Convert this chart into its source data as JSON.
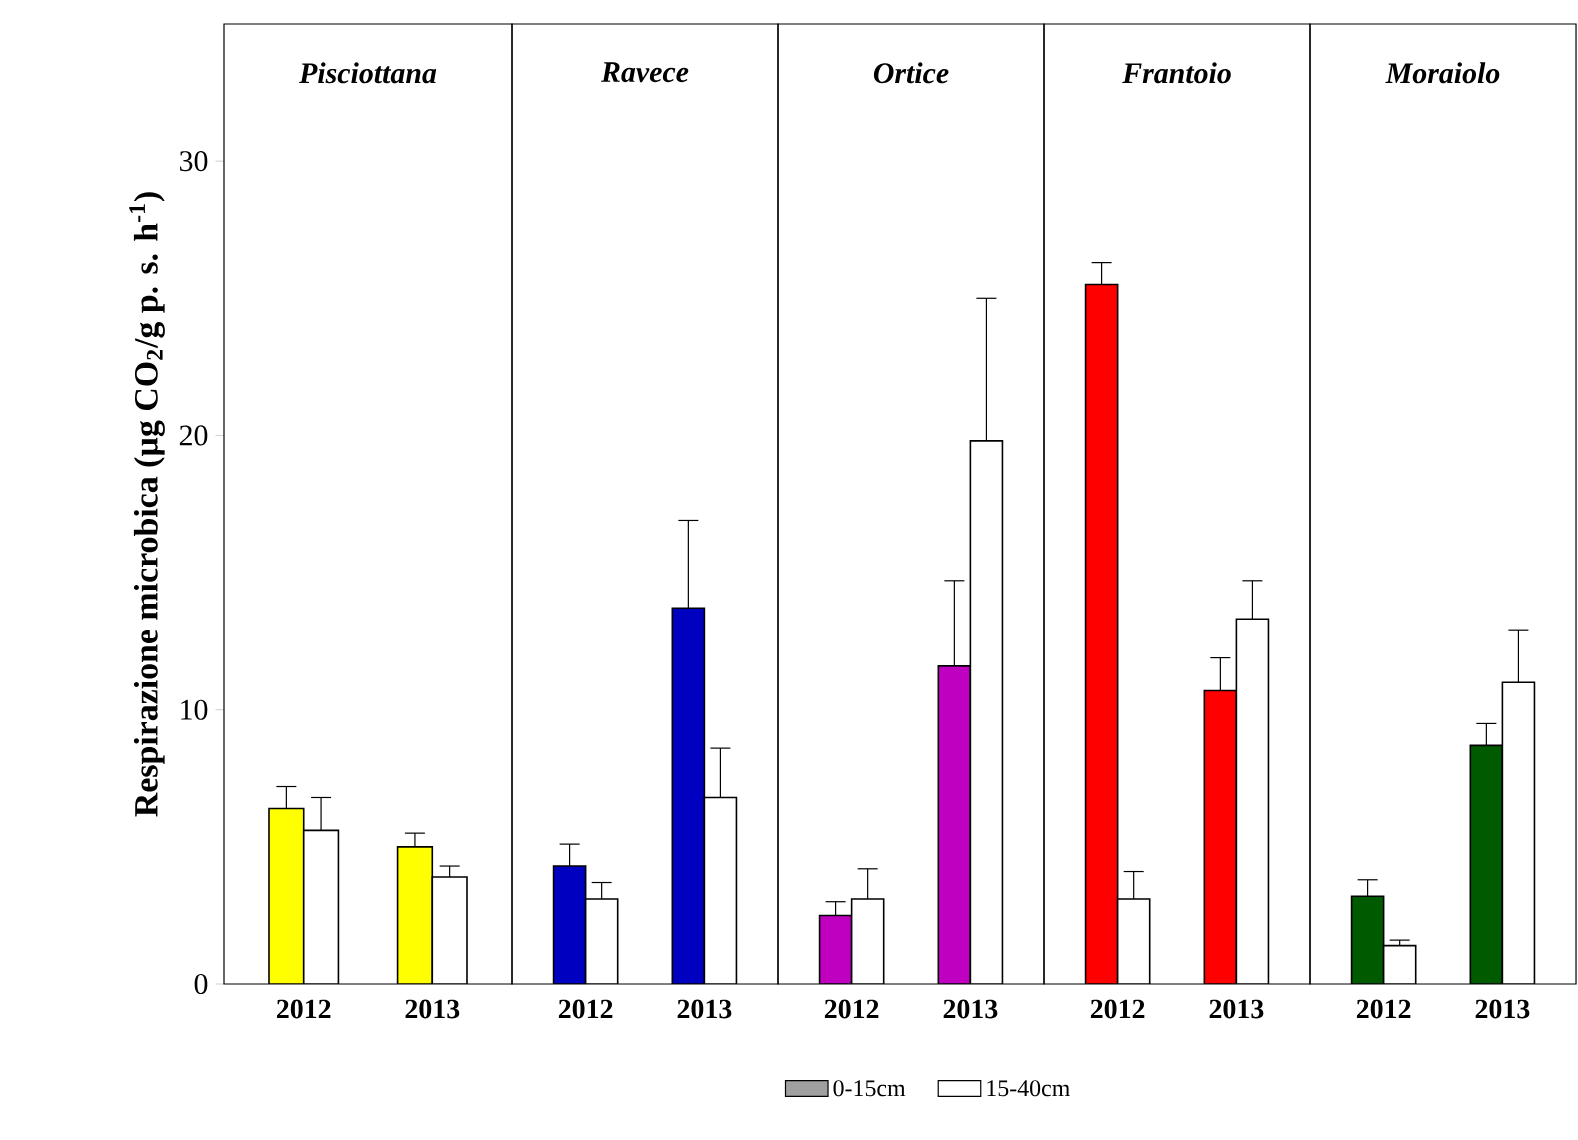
{
  "chart_data": [
    {
      "type": "bar",
      "title": "Pisciottana",
      "ylabel": "Respirazione microbica (µg CO$_{2}$/g p. s. h$^{-1}$)",
      "categories": [
        "2012",
        "2013"
      ],
      "ylim": [
        0,
        35
      ],
      "yticks": [
        0,
        10,
        20,
        30
      ],
      "legend": "bottom",
      "series": [
        {
          "name": "0-15cm",
          "color": "#a0a0a0",
          "colors": [
            "#ffff00",
            "#ffff00"
          ],
          "values": [
            6.4,
            5.0
          ],
          "errors": [
            [
              6.4,
              7.2
            ],
            [
              5.0,
              5.5
            ]
          ]
        },
        {
          "name": "15-40cm",
          "color": "#ffffff",
          "values": [
            5.6,
            3.9
          ],
          "errors": [
            [
              5.6,
              6.8
            ],
            [
              3.9,
              4.3
            ]
          ]
        }
      ]
    },
    {
      "type": "bar",
      "title": "Ravece",
      "categories": [
        "2012",
        "2013"
      ],
      "ylim": [
        0,
        35
      ],
      "yticks": [
        0,
        10,
        20,
        30
      ],
      "tick_labels": "x",
      "series": [
        {
          "color": "#0000c0",
          "values": [
            4.3,
            13.7
          ],
          "errors": [
            [
              4.3,
              5.1
            ],
            [
              13.7,
              16.9
            ]
          ]
        },
        {
          "color": "#ffffff",
          "values": [
            3.1,
            6.8
          ],
          "errors": [
            [
              3.1,
              3.7
            ],
            [
              6.8,
              8.6
            ]
          ]
        }
      ]
    },
    {
      "type": "bar",
      "title": "Ortice",
      "categories": [
        "2012",
        "2013"
      ],
      "ylim": [
        0,
        35
      ],
      "yticks": [
        0,
        10,
        20,
        30
      ],
      "tick_labels": "x",
      "series": [
        {
          "color": "#c000c0",
          "values": [
            2.5,
            11.6
          ],
          "errors": [
            [
              2.5,
              3.0
            ],
            [
              11.6,
              14.7
            ]
          ]
        },
        {
          "color": "#ffffff",
          "values": [
            3.1,
            19.8
          ],
          "errors": [
            [
              3.1,
              4.2
            ],
            [
              19.8,
              25.0
            ]
          ]
        }
      ]
    },
    {
      "type": "bar",
      "title": "Frantoio",
      "categories": [
        "2012",
        "2013"
      ],
      "ylim": [
        0,
        35
      ],
      "yticks": [
        0,
        10,
        20,
        30
      ],
      "tick_labels": "x",
      "series": [
        {
          "color": "#ff0000",
          "values": [
            25.5,
            10.7
          ],
          "errors": [
            [
              25.5,
              26.3
            ],
            [
              10.7,
              11.9
            ]
          ]
        },
        {
          "color": "#ffffff",
          "values": [
            3.1,
            13.3
          ],
          "errors": [
            [
              3.1,
              4.1
            ],
            [
              13.3,
              14.7
            ]
          ]
        }
      ]
    },
    {
      "type": "bar",
      "title": "Moraiolo",
      "categories": [
        "2012",
        "2013"
      ],
      "ylim": [
        0,
        35
      ],
      "yticks": [
        0,
        10,
        20,
        30
      ],
      "tick_labels": "x",
      "series": [
        {
          "color": "#005a00",
          "values": [
            3.2,
            8.7
          ],
          "errors": [
            [
              3.2,
              3.8
            ],
            [
              8.7,
              9.5
            ]
          ]
        },
        {
          "color": "#ffffff",
          "values": [
            1.4,
            11.0
          ],
          "errors": [
            [
              1.4,
              1.6
            ],
            [
              11.0,
              12.9
            ]
          ]
        }
      ]
    }
  ]
}
